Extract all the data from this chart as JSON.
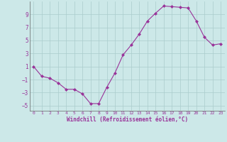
{
  "x": [
    0,
    1,
    2,
    3,
    4,
    5,
    6,
    7,
    8,
    9,
    10,
    11,
    12,
    13,
    14,
    15,
    16,
    17,
    18,
    19,
    20,
    21,
    22,
    23
  ],
  "y": [
    1,
    -0.5,
    -0.8,
    -1.5,
    -2.5,
    -2.5,
    -3.2,
    -4.7,
    -4.7,
    -2.2,
    0.0,
    2.8,
    4.3,
    6.0,
    8.0,
    9.2,
    10.3,
    10.2,
    10.1,
    10.0,
    8.0,
    5.5,
    4.3,
    4.5
  ],
  "line_color": "#993399",
  "marker": "D",
  "marker_size": 2,
  "bg_color": "#cce8e8",
  "grid_color": "#aacccc",
  "tick_color": "#993399",
  "label_color": "#993399",
  "xlabel": "Windchill (Refroidissement éolien,°C)",
  "xlim": [
    -0.5,
    23.5
  ],
  "ylim": [
    -5.8,
    11.0
  ],
  "yticks": [
    -5,
    -3,
    -1,
    1,
    3,
    5,
    7,
    9
  ],
  "xticks": [
    0,
    1,
    2,
    3,
    4,
    5,
    6,
    7,
    8,
    9,
    10,
    11,
    12,
    13,
    14,
    15,
    16,
    17,
    18,
    19,
    20,
    21,
    22,
    23
  ]
}
